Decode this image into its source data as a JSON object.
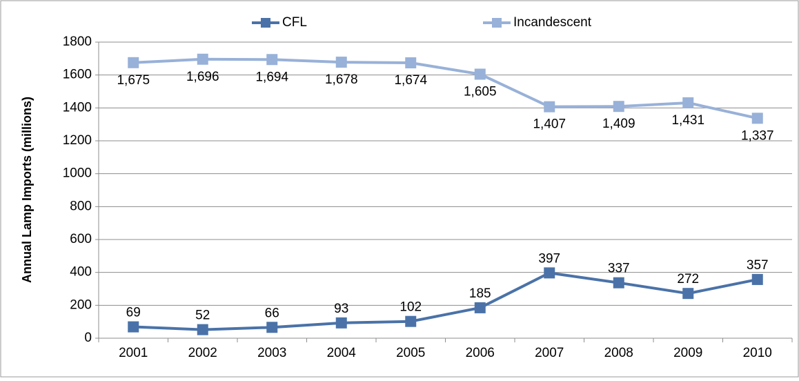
{
  "chart_data": {
    "type": "line",
    "y_label": "Annual Lamp Imports (millions)",
    "categories": [
      "2001",
      "2002",
      "2003",
      "2004",
      "2005",
      "2006",
      "2007",
      "2008",
      "2009",
      "2010"
    ],
    "series": [
      {
        "name": "CFL",
        "color": "#4a72a8",
        "values": [
          69,
          52,
          66,
          93,
          102,
          185,
          397,
          337,
          272,
          357
        ]
      },
      {
        "name": "Incandescent",
        "color": "#98b1d8",
        "values": [
          1675,
          1696,
          1694,
          1678,
          1674,
          1605,
          1407,
          1409,
          1431,
          1337
        ],
        "value_labels": [
          "1,675",
          "1,696",
          "1,694",
          "1,678",
          "1,674",
          "1,605",
          "1,407",
          "1,409",
          "1,431",
          "1,337"
        ]
      }
    ],
    "ylim": [
      0,
      1800
    ],
    "yticks": [
      0,
      200,
      400,
      600,
      800,
      1000,
      1200,
      1400,
      1600,
      1800
    ],
    "grid": true,
    "legend": "top"
  }
}
